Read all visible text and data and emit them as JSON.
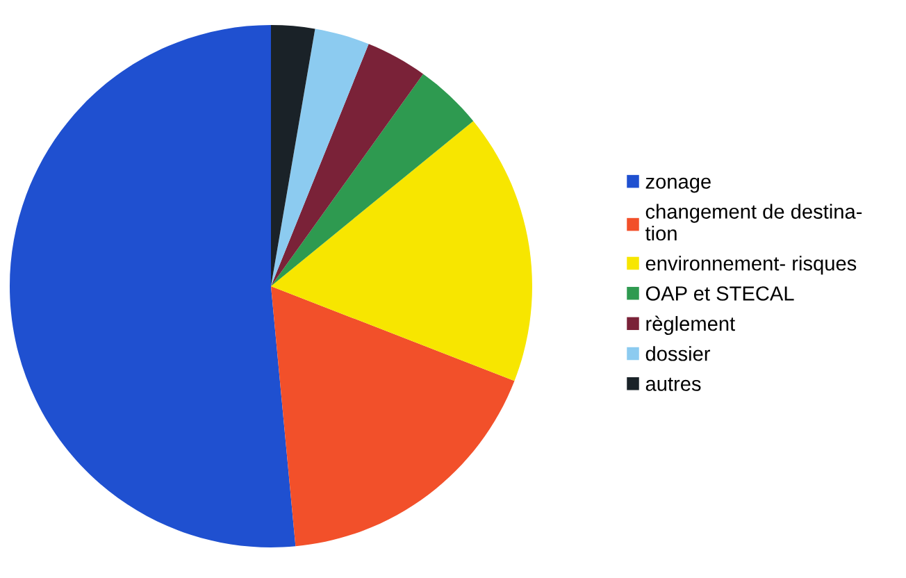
{
  "chart_data": {
    "type": "pie",
    "categories": [
      "zonage",
      "changement de destina-\ntion",
      "environnement- risques",
      "OAP et STECAL",
      "règlement",
      "dossier",
      "autres"
    ],
    "values": [
      51.5,
      17.6,
      16.8,
      4.2,
      3.8,
      3.4,
      2.7
    ],
    "colors": [
      "#1f50d0",
      "#f2502a",
      "#f7e600",
      "#2e9a50",
      "#7a2238",
      "#8ccbf0",
      "#1a2228"
    ],
    "legend": "right"
  }
}
